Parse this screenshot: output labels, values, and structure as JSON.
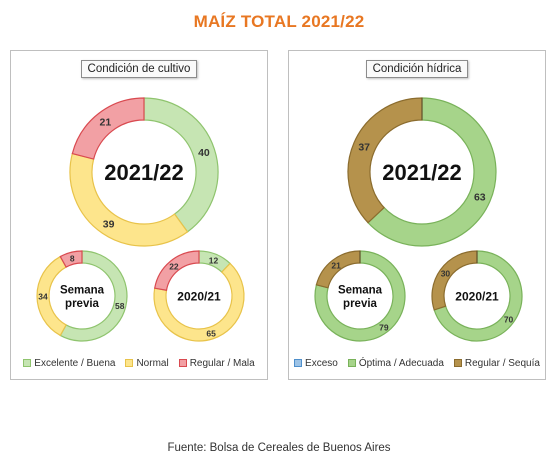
{
  "title": "MAÍZ TOTAL 2021/22",
  "source": "Fuente: Bolsa de Cereales de Buenos Aires",
  "chart_data": [
    {
      "type": "pie",
      "title": "Condición de cultivo",
      "legend": [
        {
          "label": "Excelente / Buena",
          "color": "#c6e5b3",
          "border": "#8fc46e"
        },
        {
          "label": "Normal",
          "color": "#fde58c",
          "border": "#e8c34a"
        },
        {
          "label": "Regular / Mala",
          "color": "#f2a0a4",
          "border": "#d94a50"
        }
      ],
      "donuts": [
        {
          "center_label": [
            "2021/22"
          ],
          "values": [
            40,
            39,
            21
          ],
          "labels": [
            "40",
            "39",
            "21"
          ]
        },
        {
          "center_label": [
            "Semana",
            "previa"
          ],
          "values": [
            58,
            34,
            8
          ],
          "labels": [
            "58",
            "34",
            "8"
          ]
        },
        {
          "center_label": [
            "2020/21"
          ],
          "values": [
            12,
            65,
            22
          ],
          "labels": [
            "12",
            "65",
            "22"
          ]
        }
      ]
    },
    {
      "type": "pie",
      "title": "Condición hídrica",
      "legend": [
        {
          "label": "Exceso",
          "color": "#9dc3e6",
          "border": "#4f8fcb"
        },
        {
          "label": "Óptima / Adecuada",
          "color": "#a6d48a",
          "border": "#79b25a"
        },
        {
          "label": "Regular / Sequía",
          "color": "#b5924c",
          "border": "#8b6c2e"
        }
      ],
      "donuts": [
        {
          "center_label": [
            "2021/22"
          ],
          "values": [
            0,
            63,
            37
          ],
          "labels": [
            "",
            "63",
            "37"
          ]
        },
        {
          "center_label": [
            "Semana",
            "previa"
          ],
          "values": [
            0,
            79,
            21
          ],
          "labels": [
            "",
            "79",
            "21"
          ]
        },
        {
          "center_label": [
            "2020/21"
          ],
          "values": [
            0,
            70,
            30
          ],
          "labels": [
            "",
            "70",
            "30"
          ]
        }
      ]
    }
  ]
}
